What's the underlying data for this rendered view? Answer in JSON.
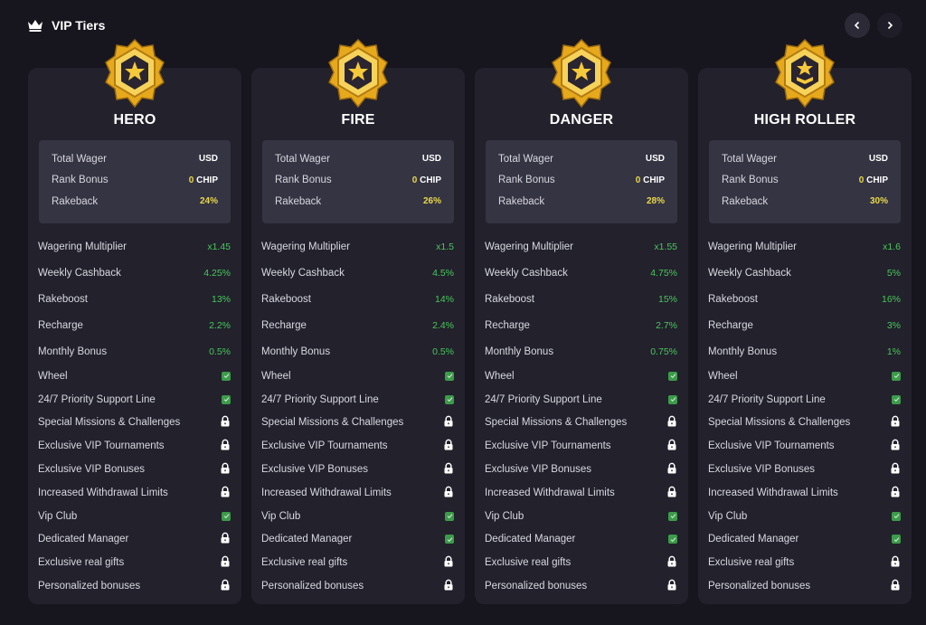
{
  "header": {
    "title": "VIP Tiers",
    "icon": "crown-icon"
  },
  "nav": {
    "prev": "chevron-left-icon",
    "next": "chevron-right-icon"
  },
  "colors": {
    "accent_green": "#49c75a",
    "accent_yellow": "#e9d94a",
    "card_bg": "#22212c",
    "page_bg": "#17161f"
  },
  "summary_labels": {
    "total_wager": "Total Wager",
    "rank_bonus": "Rank Bonus",
    "rakeback": "Rakeback"
  },
  "feature_labels": [
    "Wagering Multiplier",
    "Weekly Cashback",
    "Rakeboost",
    "Recharge",
    "Monthly Bonus",
    "Wheel",
    "24/7 Priority Support Line",
    "Special Missions & Challenges",
    "Exclusive VIP Tournaments",
    "Exclusive VIP Bonuses",
    "Increased Withdrawal Limits",
    "Vip Club",
    "Dedicated Manager",
    "Exclusive real gifts",
    "Personalized bonuses"
  ],
  "tiers": [
    {
      "name": "HERO",
      "total_wager": "USD",
      "rank_bonus_amount": "0",
      "rank_bonus_unit": "CHIP",
      "rakeback": "24%",
      "pct_values": [
        "x1.45",
        "4.25%",
        "13%",
        "2.2%",
        "0.5%"
      ],
      "perks": [
        "check",
        "check",
        "lock",
        "lock",
        "lock",
        "lock",
        "check",
        "lock",
        "lock",
        "lock"
      ]
    },
    {
      "name": "FIRE",
      "total_wager": "USD",
      "rank_bonus_amount": "0",
      "rank_bonus_unit": "CHIP",
      "rakeback": "26%",
      "pct_values": [
        "x1.5",
        "4.5%",
        "14%",
        "2.4%",
        "0.5%"
      ],
      "perks": [
        "check",
        "check",
        "lock",
        "lock",
        "lock",
        "lock",
        "check",
        "check",
        "lock",
        "lock"
      ]
    },
    {
      "name": "DANGER",
      "total_wager": "USD",
      "rank_bonus_amount": "0",
      "rank_bonus_unit": "CHIP",
      "rakeback": "28%",
      "pct_values": [
        "x1.55",
        "4.75%",
        "15%",
        "2.7%",
        "0.75%"
      ],
      "perks": [
        "check",
        "check",
        "lock",
        "lock",
        "lock",
        "lock",
        "check",
        "check",
        "lock",
        "lock"
      ]
    },
    {
      "name": "HIGH ROLLER",
      "total_wager": "USD",
      "rank_bonus_amount": "0",
      "rank_bonus_unit": "CHIP",
      "rakeback": "30%",
      "pct_values": [
        "x1.6",
        "5%",
        "16%",
        "3%",
        "1%"
      ],
      "perks": [
        "check",
        "check",
        "lock",
        "lock",
        "lock",
        "lock",
        "check",
        "check",
        "lock",
        "lock"
      ]
    }
  ]
}
